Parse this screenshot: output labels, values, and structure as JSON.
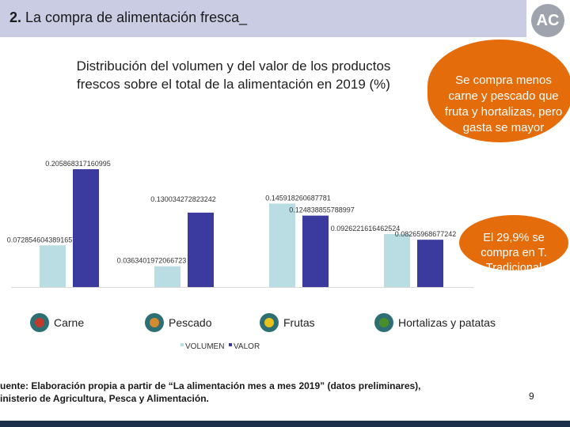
{
  "header": {
    "number": "2.",
    "title": "La compra de alimentación fresca_",
    "logo": "AC"
  },
  "chart_data": {
    "type": "bar",
    "title": "Distribución del volumen y del valor de los productos frescos sobre el total de la alimentación en 2019 (%)",
    "categories": [
      "Carne",
      "Pescado",
      "Frutas",
      "Hortalizas y patatas"
    ],
    "category_icons": [
      "meat-icon",
      "fish-icon",
      "banana-icon",
      "broccoli-icon"
    ],
    "series": [
      {
        "name": "VOLUMEN",
        "color": "#b9dde2",
        "values": [
          0.0728546043891657,
          0.0363401972066723,
          0.145918260687781,
          0.0926221616462524
        ],
        "labels": [
          "0.0728546043891657",
          "0.0363401972066723",
          "0.145918260687781",
          "0.0926221616462524"
        ]
      },
      {
        "name": "VALOR",
        "color": "#3b3b9f",
        "values": [
          0.205868317160995,
          0.130034272823242,
          0.124838855788997,
          0.0826596867724
        ],
        "labels": [
          "0.205868317160995",
          "0.130034272823242",
          "0.124838855788997",
          "0.08265968677242"
        ]
      }
    ],
    "ylim": [
      0,
      0.22
    ],
    "legend": "bottom-center"
  },
  "callouts": {
    "bubble_top": "Se compra menos carne y pescado que fruta y hortalizas, pero gasta se mayor",
    "bubble_mid": "El 29,9% se compra en T. Tradicional"
  },
  "footer": {
    "source": "uente: Elaboración propia a partir de “La alimentación mes a mes 2019” (datos preliminares), inisterio de Agricultura, Pesca y Alimentación.",
    "line1": "uente: Elaboración propia a partir de “La alimentación mes a mes 2019” (datos preliminares),",
    "line2": "inisterio de Agricultura, Pesca y Alimentación.",
    "page": "9"
  },
  "colors": {
    "header_bg": "#c9cce3",
    "accent": "#e46c0a",
    "bottom_bar": "#1c2f4a"
  }
}
